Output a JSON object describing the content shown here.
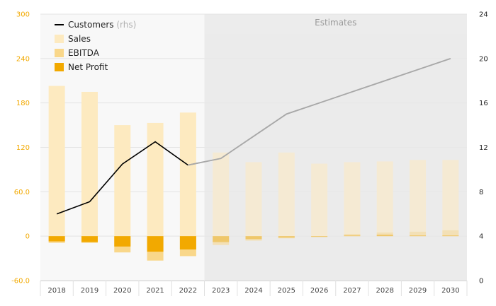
{
  "chart_data": {
    "type": "bar",
    "categories": [
      "2018",
      "2019",
      "2020",
      "2021",
      "2022",
      "2023",
      "2024",
      "2025",
      "2026",
      "2027",
      "2028",
      "2029",
      "2030"
    ],
    "estimates_from": "2023",
    "estimates_label": "Estimates",
    "y_left": {
      "ticks": [
        "300",
        "240",
        "180",
        "120",
        "60.0",
        "0",
        "-60.0"
      ],
      "range": [
        -60,
        300
      ]
    },
    "y_right": {
      "ticks": [
        "24",
        "20",
        "16",
        "12",
        "8",
        "4",
        "0"
      ],
      "range": [
        0,
        24
      ]
    },
    "legend": [
      {
        "label": "Customers",
        "sub": "(rhs)",
        "kind": "line",
        "color": "#000000"
      },
      {
        "label": "Sales",
        "kind": "box",
        "color": "#fdeac0"
      },
      {
        "label": "EBITDA",
        "kind": "box",
        "color": "#f9d78a"
      },
      {
        "label": "Net Profit",
        "kind": "box",
        "color": "#f2a900"
      }
    ],
    "legend_position": "top-left",
    "grid": true,
    "series": [
      {
        "name": "Sales",
        "axis": "left",
        "color": "#fdeac0",
        "values": [
          203,
          195,
          150,
          153,
          167,
          113,
          100,
          113,
          98,
          100,
          101,
          103,
          103
        ]
      },
      {
        "name": "EBITDA",
        "axis": "left",
        "color": "#f9d78a",
        "values": [
          -9,
          -9,
          -22,
          -33,
          -27,
          -12,
          -6,
          -3,
          -1,
          3,
          5,
          6,
          8
        ]
      },
      {
        "name": "Net Profit",
        "axis": "left",
        "color": "#f2a900",
        "values": [
          -7,
          -8,
          -14,
          -21,
          -18,
          -8,
          -4,
          -2,
          -1,
          1,
          2,
          1,
          1
        ]
      },
      {
        "name": "Customers",
        "axis": "right",
        "color": "#000000",
        "estimate_color": "#a8a8a8",
        "values": [
          6.0,
          7.1,
          10.5,
          12.5,
          10.4,
          11.0,
          13.0,
          15.0,
          16.0,
          17.0,
          18.0,
          19.0,
          20.0
        ]
      }
    ]
  }
}
